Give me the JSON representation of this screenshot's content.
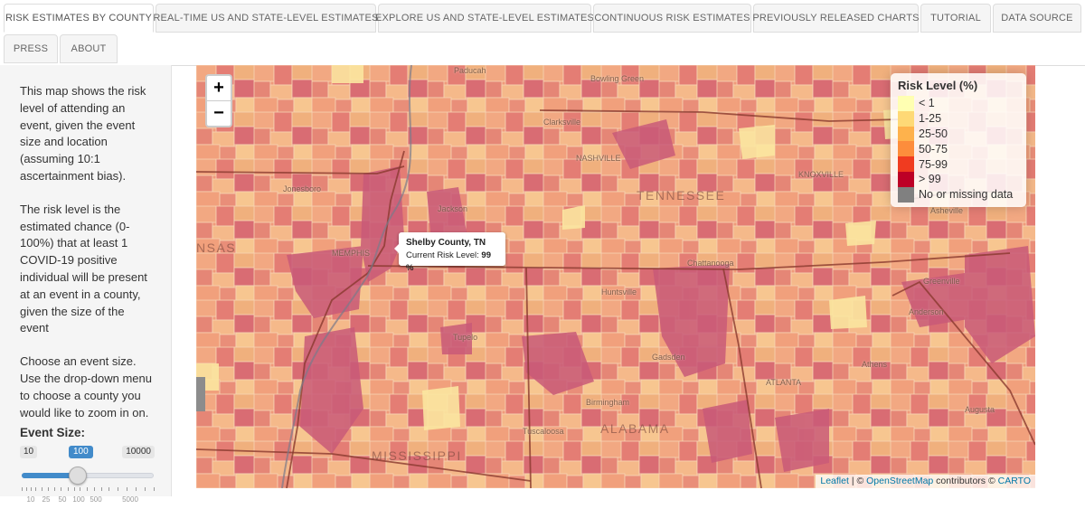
{
  "tabs": [
    {
      "label": "RISK ESTIMATES BY COUNTY",
      "active": true
    },
    {
      "label": "REAL-TIME US AND STATE-LEVEL ESTIMATES"
    },
    {
      "label": "EXPLORE US AND STATE-LEVEL ESTIMATES"
    },
    {
      "label": "CONTINUOUS RISK ESTIMATES"
    },
    {
      "label": "PREVIOUSLY RELEASED CHARTS"
    },
    {
      "label": "TUTORIAL"
    },
    {
      "label": "DATA SOURCE"
    },
    {
      "label": "PRESS"
    },
    {
      "label": "ABOUT"
    }
  ],
  "sidebar": {
    "intro": "This map shows the risk level of attending an event, given the event size and location (assuming 10:1 ascertainment bias).",
    "definition": "The risk level is the estimated chance (0-100%) that at least 1 COVID-19 positive individual will be present at an event in a county, given the size of the event",
    "instructions": "Choose an event size. Use the drop-down menu to choose a county you would like to zoom in on.",
    "event_size_label": "Event Size:",
    "slider": {
      "min_label": "10",
      "max_label": "10000",
      "value_label": "100",
      "value": 100,
      "ticks": [
        "10",
        "25",
        "50",
        "100",
        "500",
        "5000"
      ]
    }
  },
  "map": {
    "zoom_in": "+",
    "zoom_out": "−",
    "legend": {
      "title": "Risk Level (%)",
      "items": [
        {
          "label": "< 1",
          "color": "#ffffb2"
        },
        {
          "label": "1-25",
          "color": "#fed976"
        },
        {
          "label": "25-50",
          "color": "#feb24c"
        },
        {
          "label": "50-75",
          "color": "#fd8d3c"
        },
        {
          "label": "75-99",
          "color": "#f03b20"
        },
        {
          "label": "> 99",
          "color": "#bd0026"
        },
        {
          "label": "No or missing data",
          "color": "#808080"
        }
      ]
    },
    "tooltip": {
      "county": "Shelby County, TN",
      "risk_label": "Current Risk Level:",
      "risk_value": "99 %"
    },
    "attribution": {
      "leaflet": "Leaflet",
      "sep1": " | © ",
      "osm": "OpenStreetMap",
      "contributors": " contributors © ",
      "carto": "CARTO"
    },
    "cities": [
      "Paducah",
      "Bowling Green",
      "Clarksville",
      "NASHVILLE",
      "KNOXVILLE",
      "Jonesboro",
      "Jackson",
      "Asheville",
      "MEMPHIS",
      "Chattanooga",
      "Huntsville",
      "Greenville",
      "Tupelo",
      "Anderson",
      "Gadsden",
      "Athens",
      "Birmingham",
      "ATLANTA",
      "Augusta",
      "Tuscaloosa"
    ],
    "states": [
      "TENNESSEE",
      "ALABAMA",
      "MISSISSIPPI",
      "NSAS"
    ]
  }
}
